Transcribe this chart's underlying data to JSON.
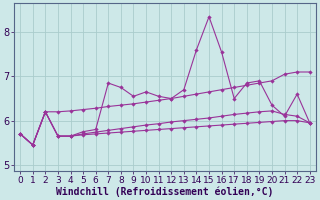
{
  "xlabel": "Windchill (Refroidissement éolien,°C)",
  "background_color": "#cde8e8",
  "grid_color": "#aacccc",
  "line_color": "#993399",
  "xlim_min": -0.5,
  "xlim_max": 23.5,
  "ylim_min": 4.85,
  "ylim_max": 8.65,
  "x": [
    0,
    1,
    2,
    3,
    4,
    5,
    6,
    7,
    8,
    9,
    10,
    11,
    12,
    13,
    14,
    15,
    16,
    17,
    18,
    19,
    20,
    21,
    22,
    23
  ],
  "s1": [
    5.7,
    5.45,
    6.2,
    5.65,
    5.65,
    5.75,
    5.8,
    6.85,
    6.75,
    6.55,
    6.65,
    6.55,
    6.5,
    6.7,
    7.6,
    8.35,
    7.55,
    6.5,
    6.85,
    6.9,
    6.35,
    6.1,
    6.6,
    5.95
  ],
  "s2": [
    5.7,
    5.45,
    6.2,
    6.2,
    6.22,
    6.25,
    6.28,
    6.32,
    6.35,
    6.38,
    6.42,
    6.46,
    6.5,
    6.55,
    6.6,
    6.65,
    6.7,
    6.75,
    6.8,
    6.85,
    6.9,
    7.05,
    7.1,
    7.1
  ],
  "s3": [
    5.7,
    5.45,
    6.2,
    5.65,
    5.65,
    5.7,
    5.74,
    5.78,
    5.82,
    5.86,
    5.9,
    5.93,
    5.97,
    6.0,
    6.03,
    6.06,
    6.1,
    6.14,
    6.17,
    6.2,
    6.22,
    6.14,
    6.1,
    5.95
  ],
  "s4": [
    5.7,
    5.45,
    6.2,
    5.65,
    5.65,
    5.68,
    5.7,
    5.72,
    5.74,
    5.76,
    5.78,
    5.8,
    5.82,
    5.84,
    5.86,
    5.88,
    5.9,
    5.92,
    5.94,
    5.96,
    5.98,
    6.0,
    6.0,
    5.95
  ],
  "xtick_labels": [
    "0",
    "1",
    "2",
    "3",
    "4",
    "5",
    "6",
    "7",
    "8",
    "9",
    "10",
    "11",
    "12",
    "13",
    "14",
    "15",
    "16",
    "17",
    "18",
    "19",
    "20",
    "21",
    "22",
    "23"
  ],
  "ytick_values": [
    5,
    6,
    7,
    8
  ],
  "tick_fontsize": 6.5,
  "xlabel_fontsize": 7.0,
  "spine_color": "#556688"
}
